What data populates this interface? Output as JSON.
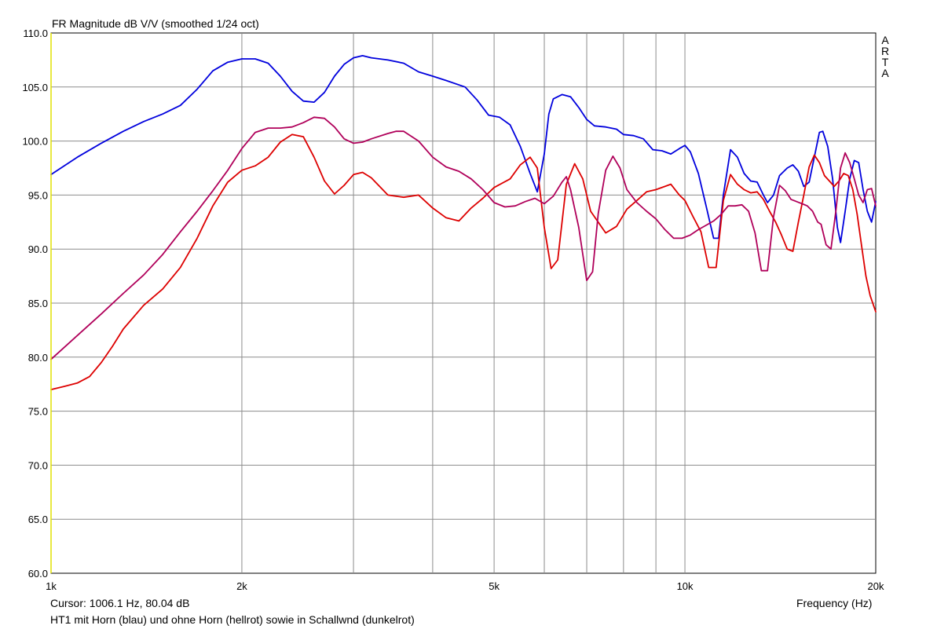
{
  "chart_data": {
    "type": "line",
    "title": "FR Magnitude dB V/V (smoothed 1/24 oct)",
    "watermark": [
      "A",
      "R",
      "T",
      "A"
    ],
    "xlabel": "Frequency (Hz)",
    "x_scale": "log",
    "xlim": [
      1000,
      20000
    ],
    "ylim": [
      60,
      110
    ],
    "grid": true,
    "y_ticks": [
      "60.0",
      "65.0",
      "70.0",
      "75.0",
      "80.0",
      "85.0",
      "90.0",
      "95.0",
      "100.0",
      "105.0",
      "110.0"
    ],
    "x_ticks": [
      {
        "value": 1000,
        "label": "1k"
      },
      {
        "value": 2000,
        "label": "2k"
      },
      {
        "value": 5000,
        "label": "5k"
      },
      {
        "value": 10000,
        "label": "10k"
      },
      {
        "value": 20000,
        "label": "20k"
      }
    ],
    "x_gridlines": [
      1000,
      2000,
      3000,
      4000,
      5000,
      6000,
      7000,
      8000,
      9000,
      10000,
      20000
    ],
    "cursor_text": "Cursor: 1006.1 Hz, 80.04 dB",
    "caption": "HT1 mit Horn (blau) und ohne Horn (hellrot) sowie in Schallwnd (dunkelrot)",
    "series": [
      {
        "color": "#0000dd",
        "points": [
          [
            1000,
            96.9
          ],
          [
            1100,
            98.5
          ],
          [
            1200,
            99.8
          ],
          [
            1300,
            100.9
          ],
          [
            1400,
            101.8
          ],
          [
            1500,
            102.5
          ],
          [
            1600,
            103.3
          ],
          [
            1700,
            104.8
          ],
          [
            1800,
            106.5
          ],
          [
            1900,
            107.3
          ],
          [
            2000,
            107.6
          ],
          [
            2100,
            107.6
          ],
          [
            2200,
            107.2
          ],
          [
            2300,
            106.0
          ],
          [
            2400,
            104.6
          ],
          [
            2500,
            103.7
          ],
          [
            2600,
            103.6
          ],
          [
            2700,
            104.5
          ],
          [
            2800,
            106.0
          ],
          [
            2900,
            107.1
          ],
          [
            3000,
            107.7
          ],
          [
            3100,
            107.9
          ],
          [
            3200,
            107.7
          ],
          [
            3400,
            107.5
          ],
          [
            3600,
            107.2
          ],
          [
            3800,
            106.4
          ],
          [
            4000,
            106.0
          ],
          [
            4200,
            105.6
          ],
          [
            4500,
            105.0
          ],
          [
            4700,
            103.8
          ],
          [
            4900,
            102.4
          ],
          [
            5100,
            102.2
          ],
          [
            5300,
            101.5
          ],
          [
            5500,
            99.5
          ],
          [
            5700,
            97.0
          ],
          [
            5850,
            95.3
          ],
          [
            6000,
            98.8
          ],
          [
            6100,
            102.5
          ],
          [
            6200,
            103.9
          ],
          [
            6400,
            104.3
          ],
          [
            6600,
            104.1
          ],
          [
            6800,
            103.1
          ],
          [
            7000,
            102.0
          ],
          [
            7200,
            101.4
          ],
          [
            7500,
            101.3
          ],
          [
            7800,
            101.1
          ],
          [
            8000,
            100.6
          ],
          [
            8300,
            100.5
          ],
          [
            8600,
            100.2
          ],
          [
            8900,
            99.2
          ],
          [
            9200,
            99.1
          ],
          [
            9500,
            98.8
          ],
          [
            9800,
            99.3
          ],
          [
            10000,
            99.6
          ],
          [
            10200,
            99.0
          ],
          [
            10500,
            97.0
          ],
          [
            10800,
            94.0
          ],
          [
            11100,
            91.0
          ],
          [
            11300,
            91.0
          ],
          [
            11500,
            95.0
          ],
          [
            11800,
            99.2
          ],
          [
            12100,
            98.5
          ],
          [
            12400,
            97.0
          ],
          [
            12700,
            96.3
          ],
          [
            13000,
            96.2
          ],
          [
            13300,
            95.0
          ],
          [
            13500,
            94.3
          ],
          [
            13800,
            95.0
          ],
          [
            14100,
            96.8
          ],
          [
            14500,
            97.5
          ],
          [
            14800,
            97.8
          ],
          [
            15100,
            97.2
          ],
          [
            15400,
            95.8
          ],
          [
            15700,
            96.2
          ],
          [
            16000,
            98.5
          ],
          [
            16300,
            100.8
          ],
          [
            16500,
            100.9
          ],
          [
            16800,
            99.5
          ],
          [
            17100,
            96.5
          ],
          [
            17400,
            92.0
          ],
          [
            17600,
            90.6
          ],
          [
            17900,
            93.5
          ],
          [
            18200,
            96.5
          ],
          [
            18500,
            98.2
          ],
          [
            18800,
            98.0
          ],
          [
            19100,
            95.5
          ],
          [
            19400,
            93.5
          ],
          [
            19700,
            92.5
          ],
          [
            20000,
            94.4
          ]
        ]
      },
      {
        "color": "#dd0000",
        "points": [
          [
            1000,
            77.0
          ],
          [
            1050,
            77.3
          ],
          [
            1100,
            77.6
          ],
          [
            1150,
            78.2
          ],
          [
            1200,
            79.5
          ],
          [
            1250,
            81.0
          ],
          [
            1300,
            82.6
          ],
          [
            1400,
            84.8
          ],
          [
            1500,
            86.3
          ],
          [
            1600,
            88.3
          ],
          [
            1700,
            91.0
          ],
          [
            1800,
            94.0
          ],
          [
            1900,
            96.2
          ],
          [
            2000,
            97.3
          ],
          [
            2100,
            97.7
          ],
          [
            2200,
            98.5
          ],
          [
            2300,
            99.9
          ],
          [
            2400,
            100.6
          ],
          [
            2500,
            100.4
          ],
          [
            2600,
            98.5
          ],
          [
            2700,
            96.3
          ],
          [
            2800,
            95.1
          ],
          [
            2900,
            95.9
          ],
          [
            3000,
            96.9
          ],
          [
            3100,
            97.1
          ],
          [
            3200,
            96.6
          ],
          [
            3400,
            95.0
          ],
          [
            3600,
            94.8
          ],
          [
            3800,
            95.0
          ],
          [
            4000,
            93.8
          ],
          [
            4200,
            92.9
          ],
          [
            4400,
            92.6
          ],
          [
            4600,
            93.8
          ],
          [
            4800,
            94.7
          ],
          [
            5000,
            95.7
          ],
          [
            5300,
            96.5
          ],
          [
            5500,
            97.8
          ],
          [
            5700,
            98.5
          ],
          [
            5850,
            97.5
          ],
          [
            6000,
            92.0
          ],
          [
            6150,
            88.2
          ],
          [
            6300,
            89.0
          ],
          [
            6500,
            96.0
          ],
          [
            6700,
            97.9
          ],
          [
            6900,
            96.5
          ],
          [
            7100,
            93.5
          ],
          [
            7500,
            91.5
          ],
          [
            7800,
            92.1
          ],
          [
            8100,
            93.7
          ],
          [
            8400,
            94.5
          ],
          [
            8700,
            95.3
          ],
          [
            9000,
            95.5
          ],
          [
            9300,
            95.8
          ],
          [
            9500,
            96.0
          ],
          [
            9800,
            95.0
          ],
          [
            10000,
            94.5
          ],
          [
            10300,
            93.0
          ],
          [
            10600,
            91.6
          ],
          [
            10900,
            88.3
          ],
          [
            11200,
            88.3
          ],
          [
            11500,
            94.5
          ],
          [
            11800,
            96.9
          ],
          [
            12100,
            96.0
          ],
          [
            12400,
            95.5
          ],
          [
            12700,
            95.2
          ],
          [
            13000,
            95.3
          ],
          [
            13300,
            94.6
          ],
          [
            13600,
            93.5
          ],
          [
            13900,
            92.5
          ],
          [
            14200,
            91.3
          ],
          [
            14500,
            90.0
          ],
          [
            14800,
            89.8
          ],
          [
            15100,
            92.5
          ],
          [
            15400,
            95.0
          ],
          [
            15700,
            97.6
          ],
          [
            16000,
            98.7
          ],
          [
            16300,
            98.0
          ],
          [
            16600,
            96.8
          ],
          [
            16900,
            96.3
          ],
          [
            17200,
            95.8
          ],
          [
            17500,
            96.3
          ],
          [
            17800,
            97.0
          ],
          [
            18100,
            96.8
          ],
          [
            18400,
            95.5
          ],
          [
            18700,
            93.2
          ],
          [
            19000,
            90.3
          ],
          [
            19300,
            87.5
          ],
          [
            19600,
            85.7
          ],
          [
            20000,
            84.2
          ]
        ]
      },
      {
        "color": "#b0005a",
        "points": [
          [
            1000,
            79.8
          ],
          [
            1100,
            82.0
          ],
          [
            1200,
            84.0
          ],
          [
            1300,
            85.9
          ],
          [
            1400,
            87.6
          ],
          [
            1500,
            89.5
          ],
          [
            1600,
            91.6
          ],
          [
            1700,
            93.5
          ],
          [
            1800,
            95.4
          ],
          [
            1900,
            97.3
          ],
          [
            2000,
            99.3
          ],
          [
            2100,
            100.8
          ],
          [
            2200,
            101.2
          ],
          [
            2300,
            101.2
          ],
          [
            2400,
            101.3
          ],
          [
            2500,
            101.7
          ],
          [
            2600,
            102.2
          ],
          [
            2700,
            102.1
          ],
          [
            2800,
            101.3
          ],
          [
            2900,
            100.2
          ],
          [
            3000,
            99.8
          ],
          [
            3100,
            99.9
          ],
          [
            3200,
            100.2
          ],
          [
            3400,
            100.7
          ],
          [
            3500,
            100.9
          ],
          [
            3600,
            100.9
          ],
          [
            3800,
            100.0
          ],
          [
            4000,
            98.5
          ],
          [
            4200,
            97.6
          ],
          [
            4400,
            97.2
          ],
          [
            4600,
            96.5
          ],
          [
            4800,
            95.5
          ],
          [
            5000,
            94.3
          ],
          [
            5200,
            93.9
          ],
          [
            5400,
            94.0
          ],
          [
            5600,
            94.4
          ],
          [
            5800,
            94.7
          ],
          [
            6000,
            94.2
          ],
          [
            6200,
            94.9
          ],
          [
            6400,
            96.2
          ],
          [
            6500,
            96.7
          ],
          [
            6600,
            95.5
          ],
          [
            6800,
            92.0
          ],
          [
            7000,
            87.1
          ],
          [
            7150,
            87.9
          ],
          [
            7300,
            93.3
          ],
          [
            7500,
            97.3
          ],
          [
            7700,
            98.6
          ],
          [
            7900,
            97.5
          ],
          [
            8100,
            95.5
          ],
          [
            8400,
            94.3
          ],
          [
            8700,
            93.5
          ],
          [
            9000,
            92.8
          ],
          [
            9300,
            91.8
          ],
          [
            9600,
            91.0
          ],
          [
            9900,
            91.0
          ],
          [
            10200,
            91.3
          ],
          [
            10500,
            91.8
          ],
          [
            10800,
            92.2
          ],
          [
            11100,
            92.6
          ],
          [
            11400,
            93.2
          ],
          [
            11700,
            94.0
          ],
          [
            12000,
            94.0
          ],
          [
            12300,
            94.1
          ],
          [
            12600,
            93.5
          ],
          [
            12900,
            91.5
          ],
          [
            13200,
            88.0
          ],
          [
            13500,
            88.0
          ],
          [
            13800,
            93.0
          ],
          [
            14100,
            95.9
          ],
          [
            14400,
            95.4
          ],
          [
            14700,
            94.6
          ],
          [
            15000,
            94.4
          ],
          [
            15300,
            94.2
          ],
          [
            15600,
            94.0
          ],
          [
            15900,
            93.5
          ],
          [
            16200,
            92.5
          ],
          [
            16400,
            92.3
          ],
          [
            16700,
            90.4
          ],
          [
            17000,
            90.0
          ],
          [
            17300,
            93.5
          ],
          [
            17600,
            97.5
          ],
          [
            17900,
            98.9
          ],
          [
            18200,
            98.0
          ],
          [
            18500,
            96.5
          ],
          [
            18800,
            95.0
          ],
          [
            19100,
            94.3
          ],
          [
            19400,
            95.5
          ],
          [
            19700,
            95.6
          ],
          [
            20000,
            94.0
          ]
        ]
      }
    ]
  }
}
